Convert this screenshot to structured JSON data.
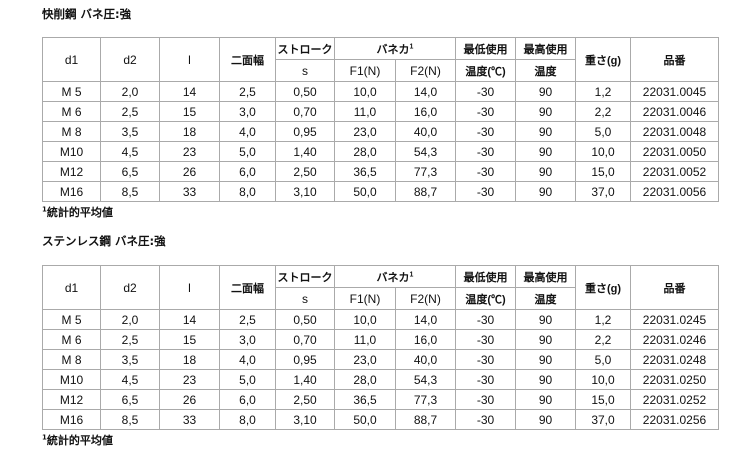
{
  "tables": [
    {
      "title": "快削鋼 バネ圧:強",
      "footnote": "統計的平均値",
      "footnote_mark": "1",
      "rows": [
        [
          "M 5",
          "2,0",
          "14",
          "2,5",
          "0,50",
          "10,0",
          "14,0",
          "-30",
          "90",
          "1,2",
          "22031.0045"
        ],
        [
          "M 6",
          "2,5",
          "15",
          "3,0",
          "0,70",
          "11,0",
          "16,0",
          "-30",
          "90",
          "2,2",
          "22031.0046"
        ],
        [
          "M 8",
          "3,5",
          "18",
          "4,0",
          "0,95",
          "23,0",
          "40,0",
          "-30",
          "90",
          "5,0",
          "22031.0048"
        ],
        [
          "M10",
          "4,5",
          "23",
          "5,0",
          "1,40",
          "28,0",
          "54,3",
          "-30",
          "90",
          "10,0",
          "22031.0050"
        ],
        [
          "M12",
          "6,5",
          "26",
          "6,0",
          "2,50",
          "36,5",
          "77,3",
          "-30",
          "90",
          "15,0",
          "22031.0052"
        ],
        [
          "M16",
          "8,5",
          "33",
          "8,0",
          "3,10",
          "50,0",
          "88,7",
          "-30",
          "90",
          "37,0",
          "22031.0056"
        ]
      ]
    },
    {
      "title": "ステンレス鋼 バネ圧:強",
      "footnote": "統計的平均値",
      "footnote_mark": "1",
      "rows": [
        [
          "M 5",
          "2,0",
          "14",
          "2,5",
          "0,50",
          "10,0",
          "14,0",
          "-30",
          "90",
          "1,2",
          "22031.0245"
        ],
        [
          "M 6",
          "2,5",
          "15",
          "3,0",
          "0,70",
          "11,0",
          "16,0",
          "-30",
          "90",
          "2,2",
          "22031.0246"
        ],
        [
          "M 8",
          "3,5",
          "18",
          "4,0",
          "0,95",
          "23,0",
          "40,0",
          "-30",
          "90",
          "5,0",
          "22031.0248"
        ],
        [
          "M10",
          "4,5",
          "23",
          "5,0",
          "1,40",
          "28,0",
          "54,3",
          "-30",
          "90",
          "10,0",
          "22031.0250"
        ],
        [
          "M12",
          "6,5",
          "26",
          "6,0",
          "2,50",
          "36,5",
          "77,3",
          "-30",
          "90",
          "15,0",
          "22031.0252"
        ],
        [
          "M16",
          "8,5",
          "33",
          "8,0",
          "3,10",
          "50,0",
          "88,7",
          "-30",
          "90",
          "37,0",
          "22031.0256"
        ]
      ]
    }
  ],
  "headers": {
    "d1": "d1",
    "d2": "d2",
    "l": "l",
    "nimenhaba": "二面幅",
    "stroke": "ストローク",
    "s": "s",
    "spring": "バネカ",
    "spring_mark": "1",
    "f1": "F1(N)",
    "f2": "F2(N)",
    "min_temp_1": "最低使用",
    "min_temp_2": "温度(℃)",
    "max_temp_1": "最高使用",
    "max_temp_2": "温度",
    "weight": "重さ(g)",
    "part": "品番"
  }
}
